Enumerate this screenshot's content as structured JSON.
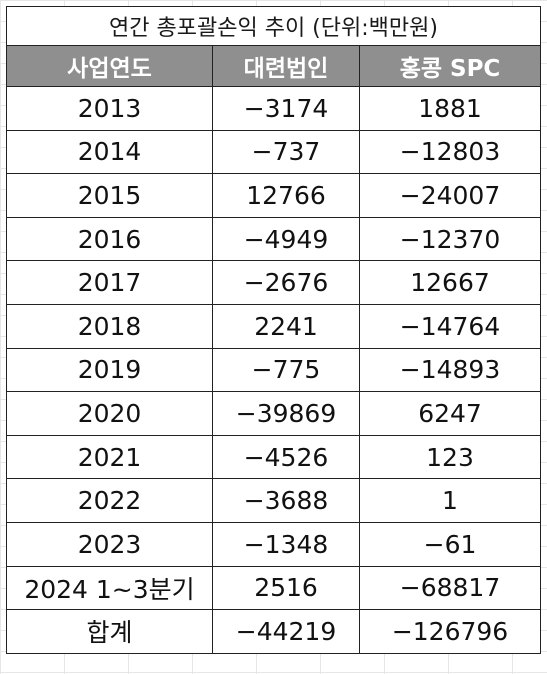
{
  "title": "연간 총포괄손익 추이 (단위:백만원)",
  "headers": [
    "사업연도",
    "대련법인",
    "홍콩 SPC"
  ],
  "rows": [
    {
      "year": "2013",
      "dalian": "−3174",
      "hongkong": "1881"
    },
    {
      "year": "2014",
      "dalian": "−737",
      "hongkong": "−12803"
    },
    {
      "year": "2015",
      "dalian": "12766",
      "hongkong": "−24007"
    },
    {
      "year": "2016",
      "dalian": "−4949",
      "hongkong": "−12370"
    },
    {
      "year": "2017",
      "dalian": "−2676",
      "hongkong": "12667"
    },
    {
      "year": "2018",
      "dalian": "2241",
      "hongkong": "−14764"
    },
    {
      "year": "2019",
      "dalian": "−775",
      "hongkong": "−14893"
    },
    {
      "year": "2020",
      "dalian": "−39869",
      "hongkong": "6247"
    },
    {
      "year": "2021",
      "dalian": "−4526",
      "hongkong": "123"
    },
    {
      "year": "2022",
      "dalian": "−3688",
      "hongkong": "1"
    },
    {
      "year": "2023",
      "dalian": "−1348",
      "hongkong": "−61"
    },
    {
      "year": "2024 1~3분기",
      "dalian": "2516",
      "hongkong": "−68817"
    },
    {
      "year": "합계",
      "dalian": "−44219",
      "hongkong": "−126796"
    }
  ],
  "colors": {
    "header_bg": "#8f8f8f",
    "header_text": "#ffffff",
    "border": "#222222",
    "text": "#111111"
  }
}
